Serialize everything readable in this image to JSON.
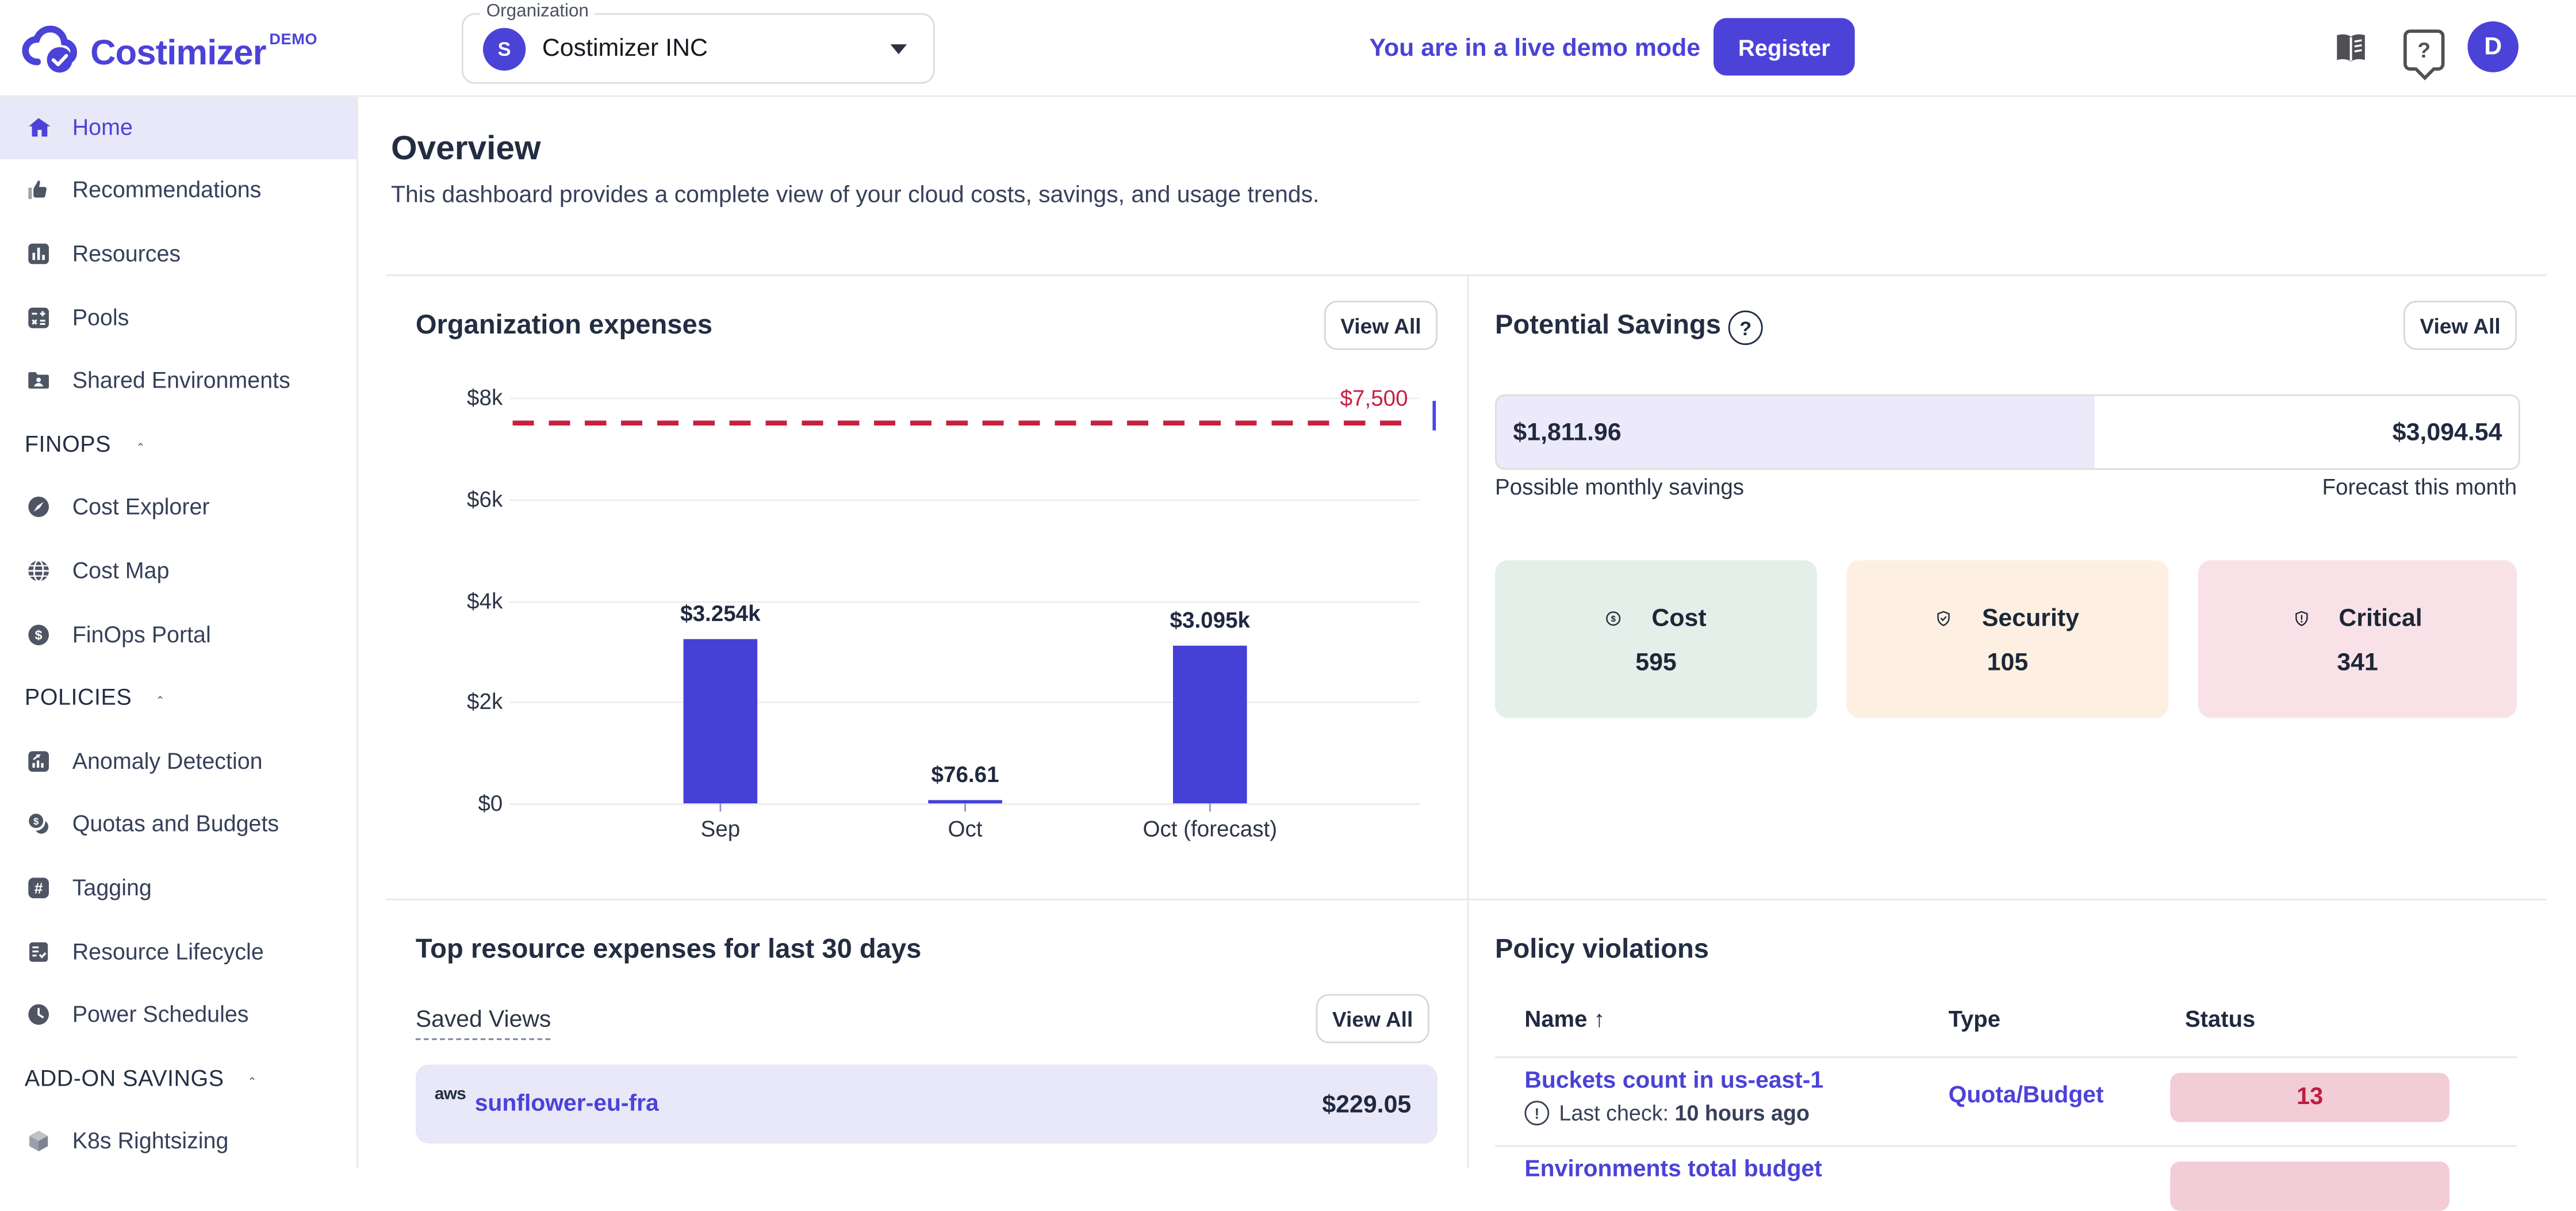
{
  "app": {
    "brand": "Costimizer",
    "brand_badge": "DEMO"
  },
  "colors": {
    "accent": "#4b42d8",
    "bar": "#4540d6",
    "threshold": "#c82040",
    "badge_bg": "#f2ccd6",
    "badge_text": "#bb1e42",
    "card_cost_bg": "#e3efe9",
    "card_security_bg": "#fdf0e2",
    "card_critical_bg": "#f9e2e7",
    "row_highlight": "#e9e8f8"
  },
  "topbar": {
    "org_label": "Organization",
    "org_avatar_letter": "S",
    "org_value": "Costimizer INC",
    "demo_notice": "You are in a live demo mode",
    "register_label": "Register",
    "user_avatar_letter": "D"
  },
  "sidebar": {
    "items": [
      {
        "type": "item",
        "icon": "home-icon",
        "label": "Home",
        "active": true
      },
      {
        "type": "item",
        "icon": "thumbs-up-icon",
        "label": "Recommendations"
      },
      {
        "type": "item",
        "icon": "bar-chart-icon",
        "label": "Resources"
      },
      {
        "type": "item",
        "icon": "calculator-icon",
        "label": "Pools"
      },
      {
        "type": "item",
        "icon": "folder-user-icon",
        "label": "Shared Environments"
      },
      {
        "type": "header",
        "label": "FINOPS"
      },
      {
        "type": "item",
        "icon": "compass-icon",
        "label": "Cost Explorer"
      },
      {
        "type": "item",
        "icon": "globe-icon",
        "label": "Cost Map"
      },
      {
        "type": "item",
        "icon": "dollar-circle-icon",
        "label": "FinOps Portal"
      },
      {
        "type": "header",
        "label": "POLICIES"
      },
      {
        "type": "item",
        "icon": "trend-chart-icon",
        "label": "Anomaly Detection"
      },
      {
        "type": "item",
        "icon": "coins-icon",
        "label": "Quotas and Budgets"
      },
      {
        "type": "item",
        "icon": "hash-icon",
        "label": "Tagging"
      },
      {
        "type": "item",
        "icon": "checklist-icon",
        "label": "Resource Lifecycle"
      },
      {
        "type": "item",
        "icon": "clock-icon",
        "label": "Power Schedules"
      },
      {
        "type": "header",
        "label": "ADD-ON SAVINGS"
      },
      {
        "type": "item",
        "icon": "cube-icon",
        "label": "K8s Rightsizing",
        "muted_icon": true
      }
    ]
  },
  "page": {
    "title": "Overview",
    "subtitle": "This dashboard provides a complete view of your cloud costs, savings, and usage trends."
  },
  "org_expenses": {
    "title": "Organization expenses",
    "view_all_label": "View All",
    "chart_data": {
      "type": "bar",
      "categories": [
        "Sep",
        "Oct",
        "Oct (forecast)"
      ],
      "values": [
        3254,
        76.61,
        3095
      ],
      "value_labels": [
        "$3.254k",
        "$76.61",
        "$3.095k"
      ],
      "ylim": [
        0,
        8000
      ],
      "yticks": [
        0,
        2000,
        4000,
        6000,
        8000
      ],
      "ytick_labels": [
        "$0",
        "$2k",
        "$4k",
        "$6k",
        "$8k"
      ],
      "threshold": {
        "value": 7500,
        "label": "$7,500"
      },
      "grid": true,
      "legend": "none"
    }
  },
  "potential_savings": {
    "title": "Potential Savings",
    "view_all_label": "View All",
    "possible_value": "$1,811.96",
    "possible_label": "Possible monthly savings",
    "forecast_value": "$3,094.54",
    "forecast_label": "Forecast this month",
    "fill_percent": 58.6,
    "cards": [
      {
        "icon": "dollar-circle-icon",
        "label": "Cost",
        "value": "595",
        "bg": "#e3efe9"
      },
      {
        "icon": "shield-check-icon",
        "label": "Security",
        "value": "105",
        "bg": "#fdf0e2"
      },
      {
        "icon": "shield-alert-icon",
        "label": "Critical",
        "value": "341",
        "bg": "#f9e2e7"
      }
    ]
  },
  "top_resources": {
    "title": "Top resource expenses for last 30 days",
    "saved_views_label": "Saved Views",
    "view_all_label": "View All",
    "rows": [
      {
        "provider": "aws",
        "name": "sunflower-eu-fra",
        "amount": "$229.05"
      }
    ]
  },
  "policy_violations": {
    "title": "Policy violations",
    "columns": {
      "name": "Name",
      "type": "Type",
      "status": "Status"
    },
    "sort_arrow": "↑",
    "rows": [
      {
        "name": "Buckets count in us-east-1",
        "last_check_label": "Last check:",
        "last_check_value": "10 hours ago",
        "type": "Quota/Budget",
        "status": "13"
      },
      {
        "name": "Environments total budget",
        "partial": true
      }
    ]
  }
}
